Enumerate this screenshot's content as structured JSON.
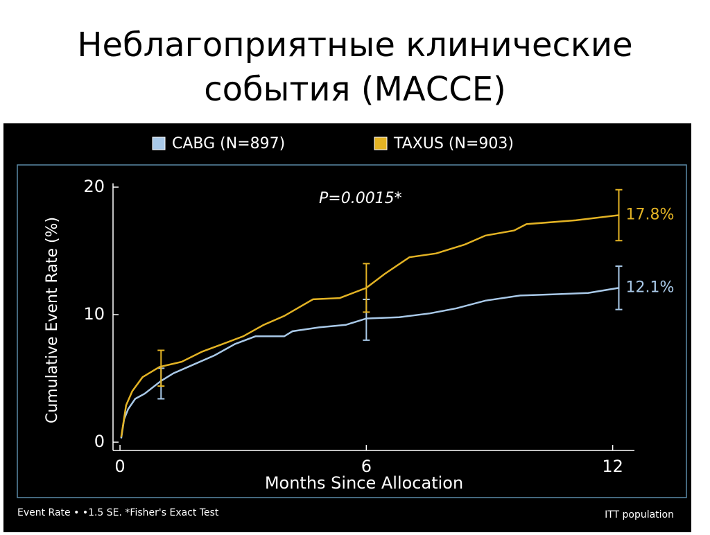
{
  "chart_data": {
    "type": "line",
    "title": [
      "Неблагоприятные клинические",
      "события (МАССЕ)"
    ],
    "annotation": "P=0.0015*",
    "xlabel": "Months Since Allocation",
    "ylabel": "Cumulative Event Rate (%)",
    "footnote": "Event Rate • •1.5 SE. *Fisher's Exact Test",
    "footnote_right": "ITT population",
    "xlim": [
      -0.17,
      12.53
    ],
    "ylim": [
      -0.65,
      20.3
    ],
    "xticks": [
      0,
      6,
      12
    ],
    "yticks": [
      0,
      10,
      20
    ],
    "series": [
      {
        "name": "CABG (N=897)",
        "color": "#a9c9e8",
        "end_label": "12.1%",
        "x": [
          0.03,
          0.1,
          0.2,
          0.37,
          0.6,
          1.0,
          1.3,
          1.8,
          2.3,
          2.8,
          3.3,
          4.0,
          4.2,
          4.85,
          5.5,
          6.0,
          6.8,
          7.55,
          8.2,
          8.9,
          9.75,
          10.6,
          11.4,
          12.15
        ],
        "values": [
          0.3,
          1.8,
          2.6,
          3.4,
          3.8,
          4.8,
          5.4,
          6.1,
          6.8,
          7.7,
          8.3,
          8.3,
          8.7,
          9.0,
          9.2,
          9.7,
          9.8,
          10.1,
          10.5,
          11.1,
          11.5,
          11.6,
          11.7,
          12.1
        ],
        "error_bars": {
          "x": [
            1.0,
            6.0,
            12.15
          ],
          "values": [
            4.6,
            9.6,
            12.1
          ],
          "errors": [
            1.2,
            1.6,
            1.7
          ]
        }
      },
      {
        "name": "TAXUS (N=903)",
        "color": "#e3b324",
        "end_label": "17.8%",
        "x": [
          0.03,
          0.15,
          0.3,
          0.55,
          0.96,
          1.5,
          2.0,
          2.5,
          3.0,
          3.5,
          4.0,
          4.7,
          5.35,
          6.0,
          6.45,
          7.05,
          7.7,
          8.4,
          8.9,
          9.6,
          9.9,
          11.1,
          12.15
        ],
        "values": [
          0.4,
          2.9,
          4.0,
          5.1,
          5.9,
          6.3,
          7.1,
          7.7,
          8.3,
          9.2,
          9.9,
          11.2,
          11.3,
          12.1,
          13.2,
          14.5,
          14.8,
          15.5,
          16.2,
          16.6,
          17.1,
          17.4,
          17.8
        ],
        "error_bars": {
          "x": [
            1.0,
            6.0,
            12.15
          ],
          "values": [
            5.8,
            12.1,
            17.8
          ],
          "errors": [
            1.4,
            1.9,
            2.0
          ]
        }
      }
    ]
  }
}
